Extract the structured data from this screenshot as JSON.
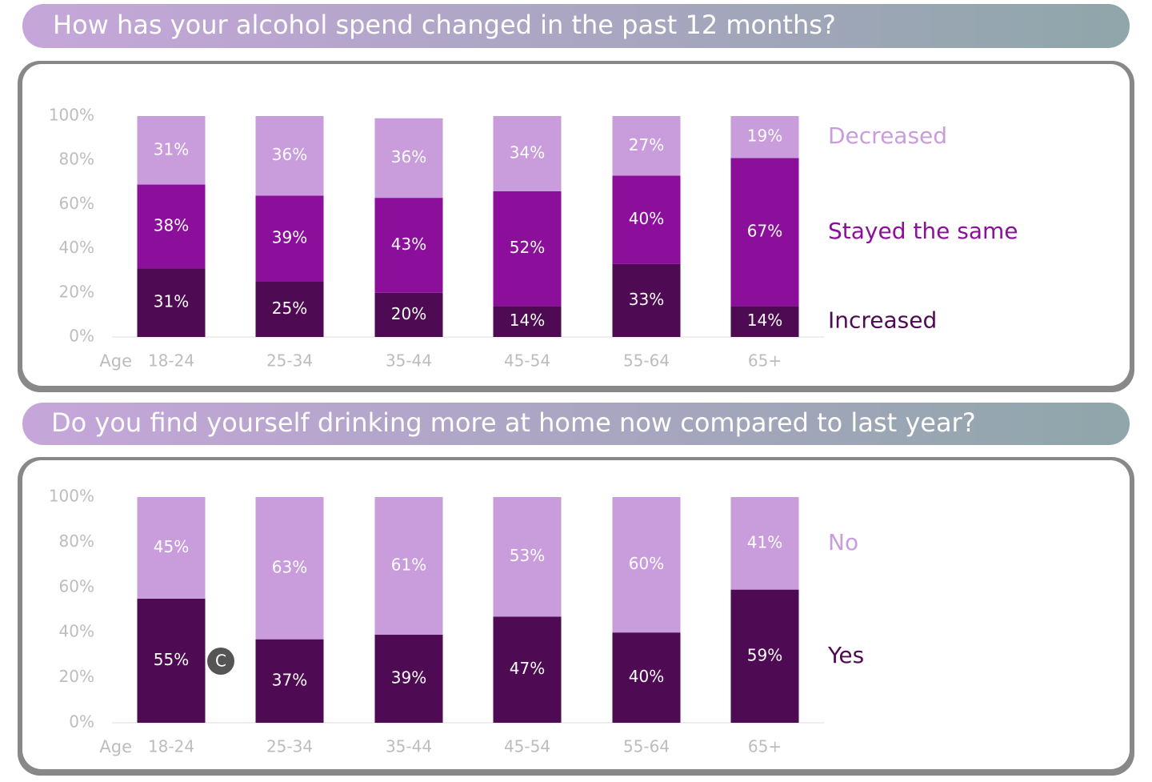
{
  "chart_data": [
    {
      "type": "bar",
      "stacked": true,
      "title": "How has your alcohol spend changed in the past 12 months?",
      "x_label": "Age",
      "categories": [
        "18-24",
        "25-34",
        "35-44",
        "45-54",
        "55-64",
        "65+"
      ],
      "series": [
        {
          "name": "Increased",
          "color": "#4e0a52",
          "values": [
            31,
            25,
            20,
            14,
            33,
            14
          ],
          "value_labels": [
            "31%",
            "25%",
            "20%",
            "14%",
            "33%",
            "14%"
          ]
        },
        {
          "name": "Stayed the same",
          "color": "#8b0f9a",
          "values": [
            38,
            39,
            43,
            52,
            40,
            67
          ],
          "value_labels": [
            "38%",
            "39%",
            "43%",
            "52%",
            "40%",
            "67%"
          ]
        },
        {
          "name": "Decreased",
          "color": "#c99ddc",
          "values": [
            31,
            36,
            36,
            34,
            27,
            19
          ],
          "value_labels": [
            "31%",
            "36%",
            "36%",
            "34%",
            "27%",
            "19%"
          ]
        }
      ],
      "ylim": [
        0,
        100
      ],
      "yticks": [
        {
          "value": 0,
          "label": "0%"
        },
        {
          "value": 20,
          "label": "20%"
        },
        {
          "value": 40,
          "label": "40%"
        },
        {
          "value": 60,
          "label": "60%"
        },
        {
          "value": 80,
          "label": "80%"
        },
        {
          "value": 100,
          "label": "100%"
        }
      ]
    },
    {
      "type": "bar",
      "stacked": true,
      "title": "Do you find yourself drinking more at home now compared to last year?",
      "x_label": "Age",
      "annotation": "C",
      "categories": [
        "18-24",
        "25-34",
        "35-44",
        "45-54",
        "55-64",
        "65+"
      ],
      "series": [
        {
          "name": "Yes",
          "color": "#4e0a52",
          "values": [
            55,
            37,
            39,
            47,
            40,
            59
          ],
          "value_labels": [
            "55%",
            "37%",
            "39%",
            "47%",
            "40%",
            "59%"
          ]
        },
        {
          "name": "No",
          "color": "#c99ddc",
          "values": [
            45,
            63,
            61,
            53,
            60,
            41
          ],
          "value_labels": [
            "45%",
            "63%",
            "61%",
            "53%",
            "60%",
            "41%"
          ]
        }
      ],
      "ylim": [
        0,
        100
      ],
      "yticks": [
        {
          "value": 0,
          "label": "0%"
        },
        {
          "value": 20,
          "label": "20%"
        },
        {
          "value": 40,
          "label": "40%"
        },
        {
          "value": 60,
          "label": "60%"
        },
        {
          "value": 80,
          "label": "80%"
        },
        {
          "value": 100,
          "label": "100%"
        }
      ]
    }
  ]
}
